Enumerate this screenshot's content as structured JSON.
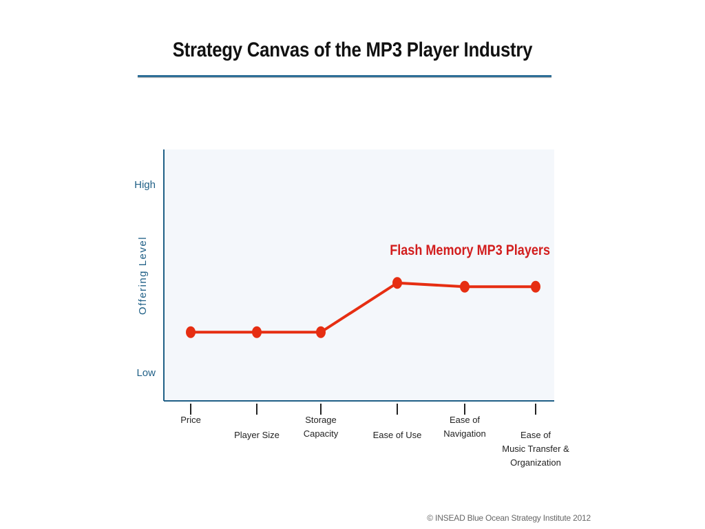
{
  "title": "Strategy Canvas of the MP3 Player Industry",
  "copyright": "© INSEAD Blue Ocean Strategy Institute 2012",
  "colors": {
    "axis": "#1f5f86",
    "series": "#e62e12",
    "series_label": "#d21e1e",
    "plot_bg": "#f4f7fb",
    "title_rule": "#2d6e97"
  },
  "chart_data": {
    "type": "line",
    "title": "Strategy Canvas of the MP3 Player Industry",
    "xlabel": "",
    "ylabel": "Offering Level",
    "y_tick_labels": [
      "High",
      "Low"
    ],
    "ylim": [
      0,
      10
    ],
    "categories": [
      [
        "Price"
      ],
      [
        "Player Size"
      ],
      [
        "Storage",
        "Capacity"
      ],
      [
        "Ease of Use"
      ],
      [
        "Ease of",
        "Navigation"
      ],
      [
        "Ease of",
        "Music Transfer &",
        "Organization"
      ]
    ],
    "series": [
      {
        "name": "Flash Memory MP3 Players",
        "values": [
          2.1,
          2.1,
          2.1,
          4.7,
          4.5,
          4.5
        ]
      }
    ],
    "grid": false,
    "legend": "series label above line, right"
  }
}
